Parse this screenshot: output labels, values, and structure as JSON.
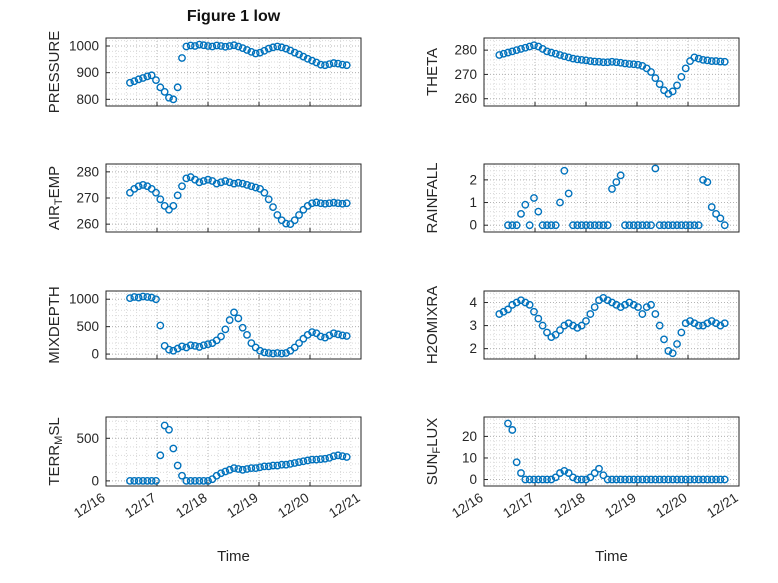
{
  "title": "Figure 1 low",
  "xlabel": "Time",
  "colors": {
    "marker": "#0072BD",
    "axis": "#262626",
    "grid_major": "#b4b4b4",
    "grid_minor": "#d9d9d9"
  },
  "chart_data": {
    "type": "scatter",
    "title": "Figure 1 low",
    "xlabel": "Time",
    "x_unit": "days since 12/16",
    "xlim": [
      0,
      5
    ],
    "xticks": [
      0,
      1,
      2,
      3,
      4,
      5
    ],
    "xtick_labels": [
      "12/16",
      "12/17",
      "12/18",
      "12/19",
      "12/20",
      "12/21"
    ],
    "grid": "major+minor dotted",
    "legend": "none",
    "x": [
      0.3,
      0.385,
      0.47,
      0.555,
      0.64,
      0.725,
      0.81,
      0.895,
      0.98,
      1.065,
      1.15,
      1.235,
      1.32,
      1.405,
      1.49,
      1.575,
      1.66,
      1.745,
      1.83,
      1.915,
      2.0,
      2.085,
      2.17,
      2.255,
      2.34,
      2.425,
      2.51,
      2.595,
      2.68,
      2.765,
      2.85,
      2.935,
      3.02,
      3.105,
      3.19,
      3.275,
      3.36,
      3.445,
      3.53,
      3.615,
      3.7,
      3.785,
      3.87,
      3.955,
      4.04,
      4.125,
      4.21,
      4.295,
      4.38,
      4.465,
      4.55,
      4.635,
      4.72
    ],
    "subplots": [
      {
        "name": "PRESSURE",
        "label_tex": "PRESSURE",
        "yticks": [
          800,
          900,
          1000
        ],
        "ylim": [
          775,
          1030
        ],
        "values": [
          null,
          null,
          862,
          868,
          875,
          880,
          886,
          890,
          872,
          845,
          828,
          806,
          800,
          845,
          955,
          998,
          1002,
          1000,
          1005,
          1003,
          1000,
          998,
          1002,
          1000,
          997,
          1000,
          1003,
          998,
          992,
          985,
          978,
          972,
          975,
          982,
          990,
          995,
          998,
          995,
          990,
          983,
          975,
          968,
          960,
          952,
          945,
          938,
          930,
          928,
          932,
          936,
          934,
          930,
          928
        ]
      },
      {
        "name": "THETA",
        "label_tex": "THETA",
        "yticks": [
          260,
          270,
          280
        ],
        "ylim": [
          257,
          285
        ],
        "values": [
          278,
          278.5,
          279,
          279.5,
          280,
          280.5,
          281,
          281.5,
          282,
          281.5,
          280.5,
          279.5,
          279,
          278.5,
          278,
          277.5,
          277,
          276.5,
          276.2,
          276,
          275.8,
          275.5,
          275.3,
          275.2,
          275,
          275,
          275.2,
          275,
          274.8,
          274.5,
          274.3,
          274.2,
          274,
          273.5,
          272.5,
          271,
          268.5,
          266,
          263.5,
          262,
          263,
          265.5,
          269,
          272.5,
          275.5,
          277,
          276.5,
          276,
          275.8,
          275.5,
          275.5,
          275.3,
          275.2
        ]
      },
      {
        "name": "AIR_TEMP",
        "label_tex": "AIR_TEMP",
        "yticks": [
          260,
          270,
          280
        ],
        "ylim": [
          257,
          283
        ],
        "values": [
          null,
          null,
          272,
          273.5,
          274.5,
          275,
          274.5,
          273.5,
          272,
          269.5,
          267,
          265.5,
          267,
          271,
          274.5,
          277.5,
          278,
          277,
          276,
          276.5,
          277,
          276.5,
          275.5,
          276,
          276.5,
          276,
          275.5,
          275.8,
          275.5,
          275,
          274.5,
          274,
          273.5,
          272,
          269.5,
          266.5,
          263.5,
          261.5,
          260.2,
          260,
          261.5,
          263.5,
          265.5,
          267,
          268,
          268.3,
          268,
          267.8,
          268,
          268.2,
          268,
          267.8,
          268
        ]
      },
      {
        "name": "RAINFALL",
        "label_tex": "RAINFALL",
        "yticks": [
          0,
          1,
          2
        ],
        "ylim": [
          -0.3,
          2.7
        ],
        "values": [
          null,
          null,
          0,
          0,
          0,
          0.5,
          0.9,
          0,
          1.2,
          0.6,
          0,
          0,
          0,
          0,
          1.0,
          2.4,
          1.4,
          0,
          0,
          0,
          0,
          0,
          0,
          0,
          0,
          0,
          1.6,
          1.9,
          2.2,
          0,
          0,
          0,
          0,
          0,
          0,
          0,
          2.5,
          0,
          0,
          0,
          0,
          0,
          0,
          0,
          0,
          0,
          0,
          2.0,
          1.9,
          0.8,
          0.5,
          0.3,
          0
        ]
      },
      {
        "name": "MIXDEPTH",
        "label_tex": "MIXDEPTH",
        "yticks": [
          0,
          500,
          1000
        ],
        "ylim": [
          -90,
          1150
        ],
        "values": [
          null,
          null,
          1020,
          1040,
          1030,
          1050,
          1040,
          1030,
          1000,
          520,
          150,
          80,
          60,
          100,
          140,
          120,
          160,
          150,
          130,
          160,
          180,
          200,
          250,
          320,
          450,
          620,
          760,
          650,
          480,
          350,
          200,
          120,
          60,
          30,
          20,
          10,
          20,
          10,
          20,
          60,
          120,
          200,
          280,
          350,
          400,
          380,
          320,
          300,
          340,
          380,
          360,
          340,
          330
        ]
      },
      {
        "name": "H2OMIXRA",
        "label_tex": "H2OMIXRA",
        "yticks": [
          2,
          3,
          4
        ],
        "ylim": [
          1.55,
          4.5
        ],
        "values": [
          3.5,
          3.6,
          3.7,
          3.9,
          4.0,
          4.1,
          4.0,
          3.9,
          3.6,
          3.3,
          3.0,
          2.7,
          2.5,
          2.6,
          2.8,
          3.0,
          3.1,
          3.0,
          2.9,
          3.0,
          3.2,
          3.5,
          3.8,
          4.1,
          4.2,
          4.1,
          4.0,
          3.9,
          3.8,
          3.9,
          4.0,
          3.9,
          3.8,
          3.5,
          3.8,
          3.9,
          3.5,
          3.0,
          2.4,
          1.9,
          1.8,
          2.2,
          2.7,
          3.1,
          3.2,
          3.1,
          3.0,
          3.0,
          3.1,
          3.2,
          3.1,
          3.0,
          3.1
        ]
      },
      {
        "name": "TERR_MSL",
        "label_tex": "TERR_MSL",
        "yticks": [
          0,
          500
        ],
        "ylim": [
          -60,
          750
        ],
        "values": [
          null,
          null,
          0,
          0,
          0,
          0,
          0,
          0,
          0,
          300,
          650,
          600,
          380,
          180,
          60,
          0,
          0,
          0,
          0,
          0,
          0,
          20,
          60,
          90,
          110,
          130,
          150,
          140,
          130,
          140,
          150,
          150,
          160,
          170,
          170,
          180,
          180,
          190,
          190,
          200,
          210,
          220,
          230,
          240,
          250,
          250,
          255,
          260,
          270,
          290,
          300,
          290,
          280
        ]
      },
      {
        "name": "SUN_FLUX",
        "label_tex": "SUN_FLUX",
        "yticks": [
          0,
          10,
          20
        ],
        "ylim": [
          -3,
          29
        ],
        "values": [
          null,
          null,
          26,
          23,
          8,
          3,
          0,
          0,
          0,
          0,
          0,
          0,
          0,
          1,
          3,
          4,
          3,
          1,
          0,
          0,
          0,
          1,
          3,
          5,
          2,
          0,
          0,
          0,
          0,
          0,
          0,
          0,
          0,
          0,
          0,
          0,
          0,
          0,
          0,
          0,
          0,
          0,
          0,
          0,
          0,
          0,
          0,
          0,
          0,
          0,
          0,
          0,
          0
        ]
      }
    ]
  }
}
